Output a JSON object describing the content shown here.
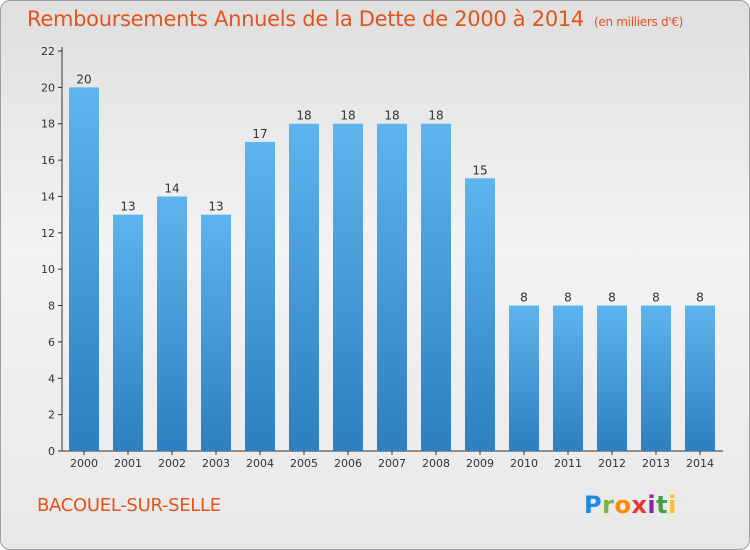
{
  "title": "Remboursements Annuels de la Dette de 2000 à 2014",
  "subtitle": "(en milliers d'€)",
  "commune": "BACOUEL-SUR-SELLE",
  "logo": {
    "letters": [
      "P",
      "r",
      "o",
      "x",
      "i",
      "t",
      "i"
    ],
    "colors": [
      "#1e88e5",
      "#7cb342",
      "#fb8c00",
      "#e53935",
      "#8e24aa",
      "#43a047",
      "#fbc02d"
    ]
  },
  "colors": {
    "bar_light": "#5db4ee",
    "bar_dark": "#2d7fc0",
    "title": "#e2541c",
    "axis": "#333333"
  },
  "chart_data": {
    "type": "bar",
    "title": "Remboursements Annuels de la Dette de 2000 à 2014",
    "ylabel": "(en milliers d'€)",
    "xlabel": "",
    "categories": [
      "2000",
      "2001",
      "2002",
      "2003",
      "2004",
      "2005",
      "2006",
      "2007",
      "2008",
      "2009",
      "2010",
      "2011",
      "2012",
      "2013",
      "2014"
    ],
    "values": [
      20,
      13,
      14,
      13,
      17,
      18,
      18,
      18,
      18,
      15,
      8,
      8,
      8,
      8,
      8
    ],
    "data_labels": [
      "20",
      "13",
      "14",
      "13",
      "17",
      "18",
      "18",
      "18",
      "18",
      "15",
      "8",
      "8",
      "8",
      "8",
      "8"
    ],
    "ylim": [
      0,
      22
    ],
    "yticks": [
      0,
      2,
      4,
      6,
      8,
      10,
      12,
      14,
      16,
      18,
      20,
      22
    ],
    "ytick_labels": [
      "0",
      "2",
      "4",
      "6",
      "8",
      "10",
      "12",
      "14",
      "16",
      "18",
      "20",
      "22"
    ],
    "grid": false
  }
}
